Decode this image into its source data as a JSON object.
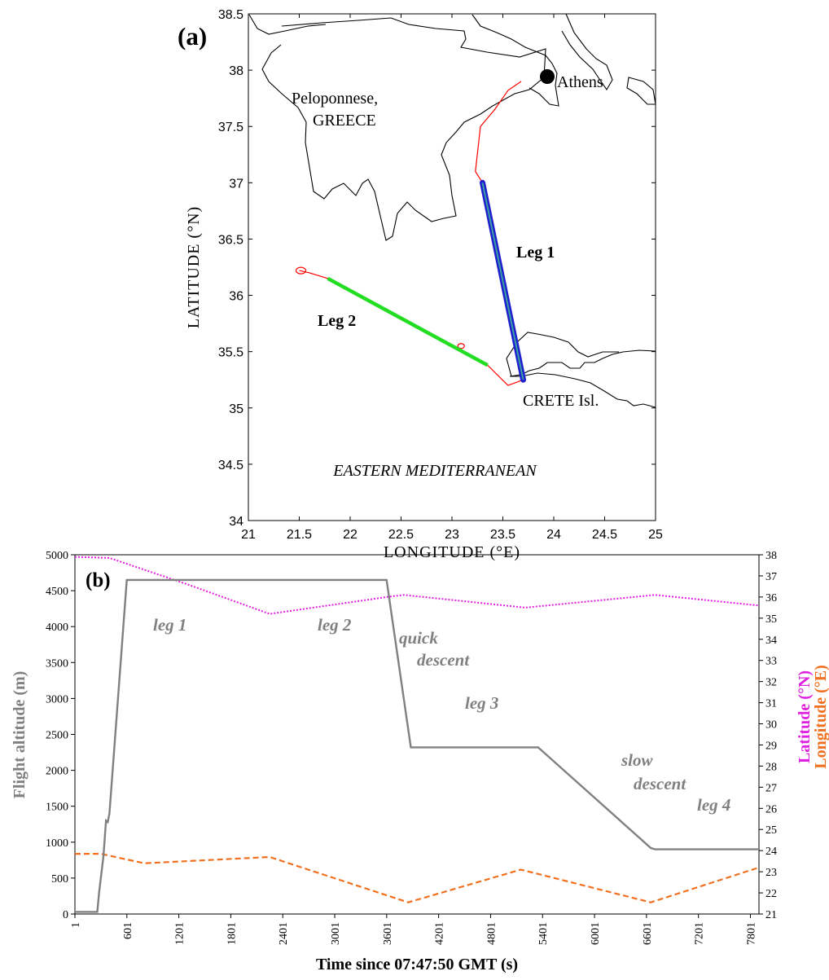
{
  "chart_data": [
    {
      "type": "line",
      "panel_label": "(a)",
      "xlabel": "LONGITUDE (°E)",
      "ylabel": "LATITUDE (°N)",
      "xlim": [
        21,
        25
      ],
      "ylim": [
        34,
        38.5
      ],
      "x_ticks": [
        "21",
        "21.5",
        "22",
        "22.5",
        "23",
        "23.5",
        "24",
        "24.5",
        "25"
      ],
      "y_ticks": [
        "34",
        "34.5",
        "35",
        "35.5",
        "36",
        "36.5",
        "37",
        "37.5",
        "38",
        "38.5"
      ],
      "annotations": {
        "peloponnese": "Peloponnese,",
        "greece": "GREECE",
        "athens": "Athens",
        "crete": "CRETE Isl.",
        "sea": "EASTERN MEDITERRANEAN",
        "leg1": "Leg 1",
        "leg2": "Leg 2"
      },
      "colors": {
        "track": "#ff0000",
        "leg1": "#1f1fd0",
        "leg1_inner": "#3aa0a0",
        "leg2": "#22dd22",
        "coast": "#000000"
      },
      "series": [
        {
          "values": [
            [
              23.68,
              37.9
            ],
            [
              23.55,
              37.82
            ],
            [
              23.42,
              37.65
            ],
            [
              23.28,
              37.5
            ],
            [
              23.23,
              37.1
            ],
            [
              23.3,
              37.0
            ],
            [
              23.7,
              35.25
            ],
            [
              23.55,
              35.2
            ],
            [
              23.35,
              35.38
            ],
            [
              21.78,
              36.15
            ],
            [
              21.6,
              36.2
            ],
            [
              21.5,
              36.22
            ]
          ]
        },
        {
          "values": [
            [
              23.3,
              37.0
            ],
            [
              23.7,
              35.25
            ]
          ]
        },
        {
          "values": [
            [
              23.35,
              35.38
            ],
            [
              21.78,
              36.15
            ]
          ]
        }
      ]
    },
    {
      "type": "line",
      "panel_label": "(b)",
      "xlabel": "Time since 07:47:50 GMT (s)",
      "ylabel": "Flight altitude (m)",
      "y2label_lat": "Latitude (°N)",
      "y2label_lon": "Longitude (°E)",
      "xlim": [
        1,
        7900
      ],
      "ylim": [
        0,
        5000
      ],
      "y2lim": [
        21,
        38
      ],
      "x_ticks": [
        "1",
        "601",
        "1201",
        "1801",
        "2401",
        "3001",
        "3601",
        "4201",
        "4801",
        "5401",
        "6001",
        "6601",
        "7201",
        "7801"
      ],
      "y_ticks": [
        "0",
        "500",
        "1000",
        "1500",
        "2000",
        "2500",
        "3000",
        "3500",
        "4000",
        "4500",
        "5000"
      ],
      "y2_ticks": [
        "21",
        "22",
        "23",
        "24",
        "25",
        "26",
        "27",
        "28",
        "29",
        "30",
        "31",
        "32",
        "33",
        "34",
        "35",
        "36",
        "37",
        "38"
      ],
      "annotations": {
        "leg1": "leg 1",
        "leg2": "leg 2",
        "quick1": "quick",
        "quick2": "descent",
        "leg3": "leg 3",
        "slow1": "slow",
        "slow2": "descent",
        "leg4": "leg 4"
      },
      "colors": {
        "altitude": "#808080",
        "latitude": "#e020e0",
        "longitude": "#f07020"
      },
      "series": [
        {
          "values": [
            [
              1,
              30
            ],
            [
              260,
              30
            ],
            [
              280,
              300
            ],
            [
              330,
              800
            ],
            [
              360,
              1300
            ],
            [
              380,
              1280
            ],
            [
              400,
              1400
            ],
            [
              600,
              4650
            ],
            [
              3600,
              4650
            ],
            [
              3880,
              2320
            ],
            [
              5350,
              2320
            ],
            [
              6650,
              920
            ],
            [
              6700,
              900
            ],
            [
              7900,
              900
            ]
          ]
        },
        {
          "values": [
            [
              1,
              37.9
            ],
            [
              400,
              37.85
            ],
            [
              1300,
              36.6
            ],
            [
              2250,
              35.2
            ],
            [
              3600,
              36.0
            ],
            [
              3800,
              36.1
            ],
            [
              5200,
              35.5
            ],
            [
              6700,
              36.1
            ],
            [
              7900,
              35.6
            ]
          ]
        },
        {
          "values": [
            [
              1,
              23.85
            ],
            [
              300,
              23.85
            ],
            [
              800,
              23.4
            ],
            [
              2250,
              23.7
            ],
            [
              3850,
              21.55
            ],
            [
              5150,
              23.1
            ],
            [
              6650,
              21.55
            ],
            [
              7900,
              23.2
            ]
          ]
        }
      ]
    }
  ]
}
